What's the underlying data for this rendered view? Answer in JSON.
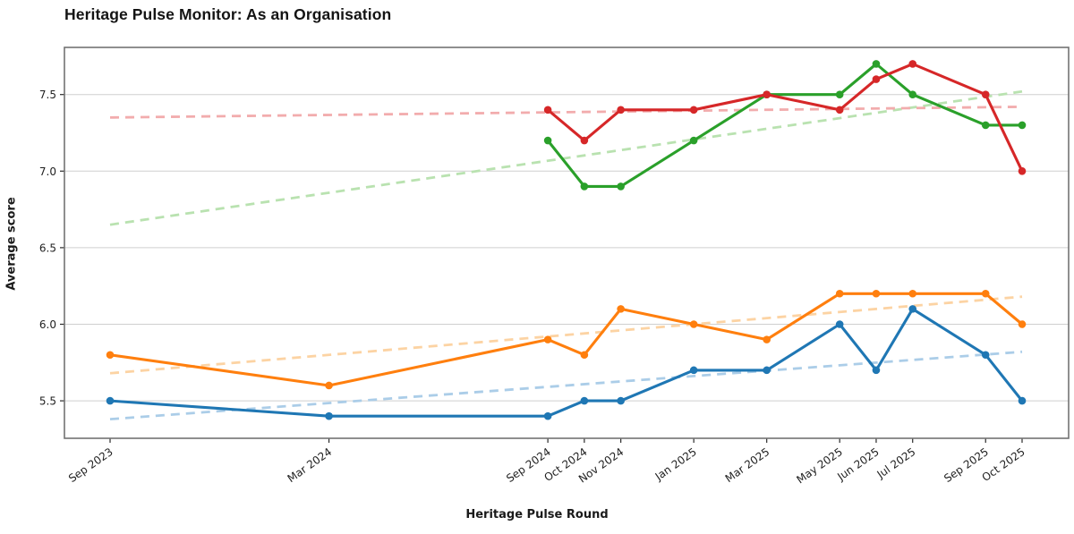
{
  "chart_data": {
    "type": "line",
    "title": "Heritage Pulse Monitor: As an Organisation",
    "xlabel": "Heritage Pulse Round",
    "ylabel": "Average score",
    "ylim": [
      5.25,
      7.8
    ],
    "yticks": [
      5.5,
      6.0,
      6.5,
      7.0,
      7.5
    ],
    "grid": "horizontal-only",
    "legend_position": "none",
    "categories": [
      "Sep 2023",
      "Mar 2024",
      "Sep 2024",
      "Oct 2024",
      "Nov 2024",
      "Jan 2025",
      "Mar 2025",
      "May 2025",
      "Jun 2025",
      "Jul 2025",
      "Sep 2025",
      "Oct 2025"
    ],
    "month_index": [
      0,
      6,
      12,
      13,
      14,
      16,
      18,
      20,
      21,
      22,
      24,
      25
    ],
    "series": [
      {
        "name": "series-blue",
        "color": "#1f77b4",
        "values": [
          5.5,
          5.4,
          5.4,
          5.5,
          5.5,
          5.7,
          5.7,
          6.0,
          5.7,
          6.1,
          5.8,
          5.5
        ]
      },
      {
        "name": "series-orange",
        "color": "#ff7f0e",
        "values": [
          5.8,
          5.6,
          5.9,
          5.8,
          6.1,
          6.0,
          5.9,
          6.2,
          6.2,
          6.2,
          6.2,
          6.0
        ]
      },
      {
        "name": "series-green",
        "color": "#2aa02a",
        "values": [
          null,
          null,
          7.2,
          6.9,
          6.9,
          7.2,
          7.5,
          7.5,
          7.7,
          7.5,
          7.3,
          7.3
        ]
      },
      {
        "name": "series-red",
        "color": "#d62728",
        "values": [
          null,
          null,
          7.4,
          7.2,
          7.4,
          7.4,
          7.5,
          7.4,
          7.6,
          7.7,
          7.5,
          7.0
        ]
      }
    ],
    "trend_lines": [
      {
        "name": "trend-blue",
        "color": "#abcde8",
        "start_value": 5.38,
        "end_value": 5.82
      },
      {
        "name": "trend-orange",
        "color": "#fcd3a3",
        "start_value": 5.68,
        "end_value": 6.18
      },
      {
        "name": "trend-green",
        "color": "#b9e2b0",
        "start_value": 6.65,
        "end_value": 7.52
      },
      {
        "name": "trend-red",
        "color": "#f2acad",
        "start_value": 7.35,
        "end_value": 7.42
      }
    ],
    "axis_colors": {
      "spine": "#737373",
      "gridline": "#cfcfcf",
      "tick": "#2b2b2b"
    }
  }
}
